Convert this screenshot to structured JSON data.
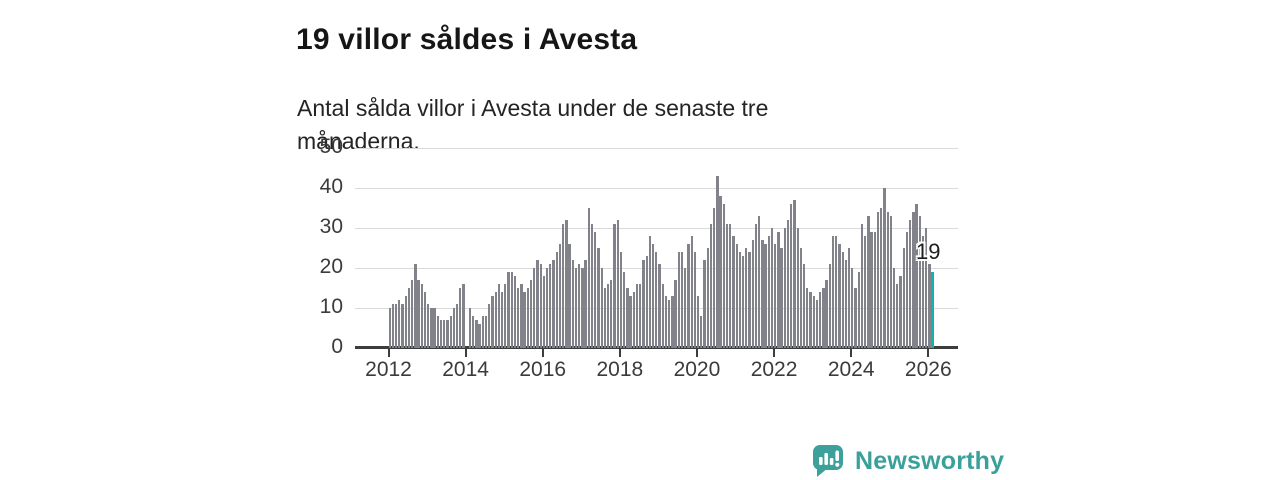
{
  "header": {
    "title": "19 villor såldes i Avesta",
    "subtitle": "Antal sålda villor i Avesta under de senaste tre månaderna."
  },
  "chart_data": {
    "type": "bar",
    "title": "19 villor såldes i Avesta",
    "subtitle": "Antal sålda villor i Avesta under de senaste tre månaderna.",
    "x_start": "2012-01",
    "x_end": "2026-02",
    "x_interval": "monthly",
    "ylim": [
      0,
      50
    ],
    "y_ticks": [
      0,
      10,
      20,
      30,
      40,
      50
    ],
    "x_ticks": [
      "2012",
      "2014",
      "2016",
      "2018",
      "2020",
      "2022",
      "2024",
      "2026"
    ],
    "grid": true,
    "bar_color": "#82828a",
    "values": [
      10,
      11,
      11,
      12,
      11,
      13,
      15,
      17,
      21,
      17,
      16,
      14,
      11,
      10,
      10,
      8,
      7,
      7,
      7,
      8,
      10,
      11,
      15,
      16,
      0,
      10,
      8,
      7,
      6,
      8,
      8,
      11,
      13,
      14,
      16,
      14,
      16,
      19,
      19,
      18,
      15,
      16,
      14,
      15,
      17,
      20,
      22,
      21,
      18,
      20,
      21,
      22,
      24,
      26,
      31,
      32,
      26,
      22,
      20,
      21,
      20,
      22,
      35,
      31,
      29,
      25,
      20,
      15,
      16,
      17,
      31,
      32,
      24,
      19,
      15,
      13,
      14,
      16,
      16,
      22,
      23,
      28,
      26,
      24,
      21,
      16,
      13,
      12,
      13,
      17,
      24,
      24,
      20,
      26,
      28,
      24,
      13,
      8,
      22,
      25,
      31,
      35,
      43,
      38,
      36,
      31,
      31,
      28,
      26,
      24,
      23,
      25,
      24,
      27,
      31,
      33,
      27,
      26,
      28,
      30,
      26,
      29,
      25,
      30,
      32,
      36,
      37,
      30,
      25,
      21,
      15,
      14,
      13,
      12,
      14,
      15,
      17,
      21,
      28,
      28,
      26,
      24,
      22,
      25,
      20,
      15,
      19,
      31,
      28,
      33,
      29,
      29,
      34,
      35,
      40,
      34,
      33,
      20,
      16,
      18,
      25,
      29,
      32,
      34,
      36,
      33,
      28,
      30,
      21,
      19
    ],
    "highlight": {
      "index": 169,
      "value": 19,
      "label": "19",
      "color": "#14b2aa"
    }
  },
  "colors": {
    "grid": "#d9d9d9",
    "axis": "#3d3d3d",
    "tick_label": "#3b3b3b",
    "bar": "#82828a",
    "highlight": "#14b2aa",
    "brand": "#3aa09a"
  },
  "footer": {
    "brand": "Newsworthy",
    "logo_icon": "newsworthy-speech-bubble-bar-chart-icon"
  }
}
